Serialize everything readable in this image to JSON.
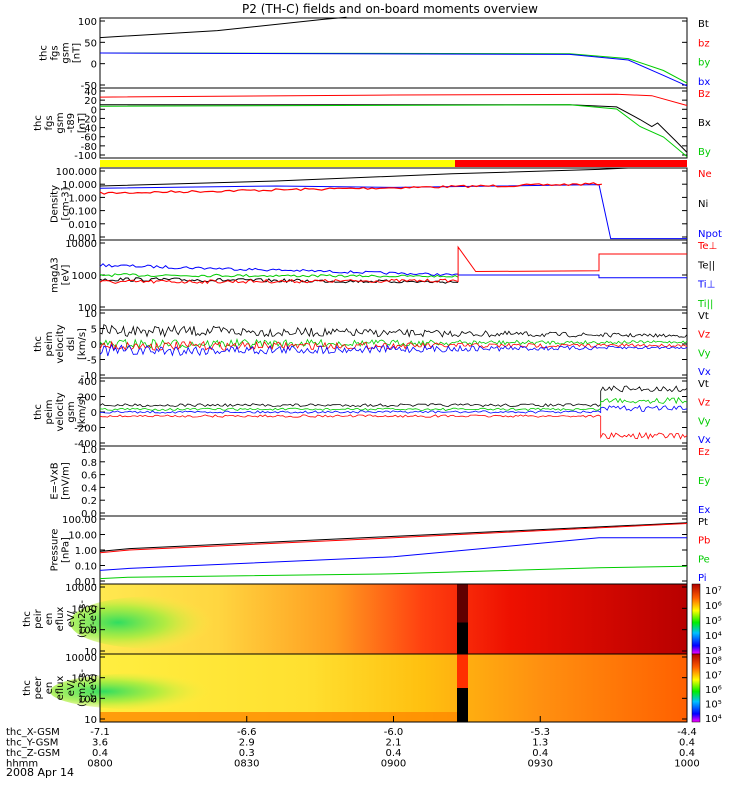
{
  "title": "P2 (TH-C) fields and on-board moments overview",
  "date_label": "2008 Apr 14",
  "colors": {
    "black": "#000000",
    "red": "#ff0000",
    "green": "#00cc00",
    "blue": "#0000ff",
    "yellow": "#ffff00"
  },
  "panels": [
    {
      "id": "fgs-gsm",
      "ylabel": [
        "thc",
        "fgs",
        "gsm",
        "[nT]"
      ],
      "yticks": [
        "100",
        "50",
        "0",
        "-50"
      ],
      "legend": [
        {
          "label": "Bt",
          "color": "#000000"
        },
        {
          "label": "bz",
          "color": "#ff0000"
        },
        {
          "label": "by",
          "color": "#00cc00"
        },
        {
          "label": "bx",
          "color": "#0000ff"
        }
      ]
    },
    {
      "id": "fgs-gsm-t89",
      "ylabel": [
        "thc",
        "fgs",
        "gsm",
        "-t89",
        "[nT]"
      ],
      "yticks": [
        "40",
        "20",
        "0",
        "-20",
        "-40",
        "-60",
        "-80",
        "-100"
      ],
      "legend": [
        {
          "label": "Bz",
          "color": "#ff0000"
        },
        {
          "label": "Bx",
          "color": "#000000"
        },
        {
          "label": "By",
          "color": "#00cc00"
        }
      ]
    },
    {
      "id": "density",
      "ylabel": [
        "Density",
        "[cm-3]"
      ],
      "yticks": [
        "100.000",
        "10.000",
        "1.000",
        "0.100",
        "0.010",
        "0.001"
      ],
      "legend": [
        {
          "label": "Ne",
          "color": "#ff0000"
        },
        {
          "label": "Ni",
          "color": "#000000"
        },
        {
          "label": "Npot",
          "color": "#0000ff"
        }
      ]
    },
    {
      "id": "temperature",
      "ylabel": [
        "magΔ3",
        "[eV]"
      ],
      "yticks": [
        "10000",
        "1000",
        "100"
      ],
      "legend": [
        {
          "label": "Te⊥",
          "color": "#ff0000"
        },
        {
          "label": "Te||",
          "color": "#000000"
        },
        {
          "label": "Ti⊥",
          "color": "#0000ff"
        },
        {
          "label": "Ti||",
          "color": "#00cc00"
        }
      ]
    },
    {
      "id": "peim-velocity-dsl",
      "ylabel": [
        "thc",
        "peim",
        "velocity",
        "dsl",
        "[km/s]"
      ],
      "yticks": [
        "10",
        "5",
        "0",
        "-5",
        "-10"
      ],
      "legend": [
        {
          "label": "Vt",
          "color": "#000000"
        },
        {
          "label": "Vz",
          "color": "#ff0000"
        },
        {
          "label": "Vy",
          "color": "#00cc00"
        },
        {
          "label": "Vx",
          "color": "#0000ff"
        }
      ]
    },
    {
      "id": "peim-velocity-gsm",
      "ylabel": [
        "thc",
        "peim",
        "velocity",
        "gsm",
        "[km/s]"
      ],
      "yticks": [
        "400",
        "200",
        "0",
        "-200",
        "-400"
      ],
      "legend": [
        {
          "label": "Vt",
          "color": "#000000"
        },
        {
          "label": "Vz",
          "color": "#ff0000"
        },
        {
          "label": "Vy",
          "color": "#00cc00"
        },
        {
          "label": "Vx",
          "color": "#0000ff"
        }
      ]
    },
    {
      "id": "e-field",
      "ylabel": [
        "E=-VxB",
        "[mV/m]"
      ],
      "yticks": [
        "1.0",
        "0.8",
        "0.6",
        "0.4",
        "0.2",
        "0.0"
      ],
      "legend": [
        {
          "label": "Ez",
          "color": "#ff0000"
        },
        {
          "label": "Ey",
          "color": "#00cc00"
        },
        {
          "label": "Ex",
          "color": "#0000ff"
        }
      ]
    },
    {
      "id": "pressure",
      "ylabel": [
        "Pressure",
        "[nPa]"
      ],
      "yticks": [
        "100.00",
        "10.00",
        "1.00",
        "0.10",
        "0.01"
      ],
      "legend": [
        {
          "label": "Pt",
          "color": "#000000"
        },
        {
          "label": "Pb",
          "color": "#ff0000"
        },
        {
          "label": "Pe",
          "color": "#00cc00"
        },
        {
          "label": "Pi",
          "color": "#0000ff"
        }
      ]
    },
    {
      "id": "peir-en-eflux",
      "ylabel": [
        "thc",
        "peir",
        "en",
        "eflux",
        "eV/",
        "(cm2-s-",
        "sr-eV)"
      ],
      "yticks": [
        "10000",
        "1000",
        "100",
        "10"
      ],
      "cbar_ticks": [
        "10⁷",
        "10⁶",
        "10⁵",
        "10⁴",
        "10³"
      ]
    },
    {
      "id": "peer-en-eflux",
      "ylabel": [
        "thc",
        "peer",
        "en",
        "eflux",
        "eV/",
        "(cm2-s-",
        "sr-eV)"
      ],
      "yticks": [
        "10000",
        "1000",
        "100",
        "10"
      ],
      "cbar_ticks": [
        "10⁸",
        "10⁷",
        "10⁶",
        "10⁵",
        "10⁴"
      ]
    }
  ],
  "mode_bar": {
    "yellow_end_fraction": 0.545
  },
  "xaxis": {
    "row_labels": [
      "thc_X-GSM",
      "thc_Y-GSM",
      "thc_Z-GSM",
      "hhmm"
    ],
    "columns": [
      {
        "x_gsm": "-7.1",
        "y_gsm": "3.6",
        "z_gsm": "0.4",
        "hhmm": "0800"
      },
      {
        "x_gsm": "-6.6",
        "y_gsm": "2.9",
        "z_gsm": "0.3",
        "hhmm": "0830"
      },
      {
        "x_gsm": "-6.0",
        "y_gsm": "2.1",
        "z_gsm": "0.4",
        "hhmm": "0900"
      },
      {
        "x_gsm": "-5.3",
        "y_gsm": "1.3",
        "z_gsm": "0.4",
        "hhmm": "0930"
      },
      {
        "x_gsm": "-4.4",
        "y_gsm": "0.4",
        "z_gsm": "0.4",
        "hhmm": "1000"
      }
    ]
  },
  "chart_data": {
    "type": "line",
    "title": "P2 (TH-C) fields and on-board moments overview",
    "x_unit": "hhmm",
    "x_range": [
      "0800",
      "1000"
    ],
    "series": [
      {
        "panel": "fgs-gsm",
        "name": "Bt",
        "x": [
          "0800",
          "0830",
          "0900",
          "0930",
          "1000"
        ],
        "values": [
          50,
          80,
          105,
          110,
          112
        ]
      },
      {
        "panel": "fgs-gsm",
        "name": "by",
        "x": [
          "0800",
          "0830",
          "0900",
          "0930",
          "0950",
          "1000"
        ],
        "values": [
          2,
          2,
          1,
          -2,
          -25,
          -45
        ]
      },
      {
        "panel": "fgs-gsm",
        "name": "bx",
        "x": [
          "0800",
          "0830",
          "0900",
          "0930",
          "0950",
          "1000"
        ],
        "values": [
          1,
          1,
          0,
          -3,
          -40,
          -60
        ]
      },
      {
        "panel": "fgs-gsm-t89",
        "name": "Bz",
        "x": [
          "0800",
          "0830",
          "0900",
          "0930",
          "0950",
          "1000"
        ],
        "values": [
          27,
          29,
          30,
          31,
          30,
          18
        ]
      },
      {
        "panel": "fgs-gsm-t89",
        "name": "Bx",
        "x": [
          "0800",
          "0830",
          "0900",
          "0930",
          "0950",
          "1000"
        ],
        "values": [
          1,
          1,
          1,
          -1,
          -30,
          -90
        ]
      },
      {
        "panel": "fgs-gsm-t89",
        "name": "By",
        "x": [
          "0800",
          "0830",
          "0900",
          "0930",
          "0950",
          "1000"
        ],
        "values": [
          -1,
          0,
          1,
          2,
          -20,
          -95
        ]
      },
      {
        "panel": "density",
        "name": "Ni",
        "x": [
          "0800",
          "0830",
          "0900",
          "0930",
          "1000"
        ],
        "values": [
          3,
          6,
          15,
          40,
          80
        ]
      },
      {
        "panel": "density",
        "name": "Ne",
        "x": [
          "0800",
          "0830",
          "0900",
          "0930",
          "1000"
        ],
        "values": [
          1.2,
          2,
          2.5,
          3.5,
          null
        ]
      },
      {
        "panel": "density",
        "name": "Npot",
        "x": [
          "0800",
          "0830",
          "0900",
          "0930",
          "0942",
          "1000"
        ],
        "values": [
          2,
          3.5,
          3,
          4,
          0.001,
          0.001
        ]
      },
      {
        "panel": "temperature",
        "name": "Te⊥",
        "x": [
          "0800",
          "0830",
          "0900",
          "0910",
          "0930",
          "0942",
          "1000"
        ],
        "values": [
          300,
          200,
          250,
          3000,
          400,
          2000,
          2000
        ]
      },
      {
        "panel": "temperature",
        "name": "Ti⊥",
        "x": [
          "0800",
          "0830",
          "0900",
          "0930",
          "0942",
          "1000"
        ],
        "values": [
          800,
          400,
          400,
          400,
          250,
          250
        ]
      },
      {
        "panel": "peim-velocity-dsl",
        "name": "Vt",
        "x": [
          "0800",
          "0830",
          "0900",
          "0930",
          "1000"
        ],
        "values": [
          3,
          2,
          1.5,
          1,
          1
        ]
      },
      {
        "panel": "peim-velocity-gsm",
        "name": "Vt",
        "x": [
          "0800",
          "0830",
          "0900",
          "0930",
          "0942",
          "1000"
        ],
        "values": [
          100,
          100,
          100,
          100,
          280,
          280
        ]
      },
      {
        "panel": "peim-velocity-gsm",
        "name": "Vz",
        "x": [
          "0800",
          "0830",
          "0900",
          "0930",
          "0942",
          "1000"
        ],
        "values": [
          -60,
          -60,
          -60,
          -60,
          -260,
          -260
        ]
      },
      {
        "panel": "pressure",
        "name": "Pt",
        "x": [
          "0800",
          "0830",
          "0900",
          "0930",
          "1000"
        ],
        "values": [
          1.2,
          3,
          8,
          20,
          50
        ]
      },
      {
        "panel": "pressure",
        "name": "Pi",
        "x": [
          "0800",
          "0830",
          "0900",
          "0930",
          "1000"
        ],
        "values": [
          0.2,
          0.5,
          1.5,
          4,
          6
        ]
      },
      {
        "panel": "pressure",
        "name": "Pe",
        "x": [
          "0800",
          "0830",
          "0900",
          "0930",
          "1000"
        ],
        "values": [
          0.05,
          0.08,
          0.12,
          0.18,
          0.25
        ]
      }
    ]
  }
}
